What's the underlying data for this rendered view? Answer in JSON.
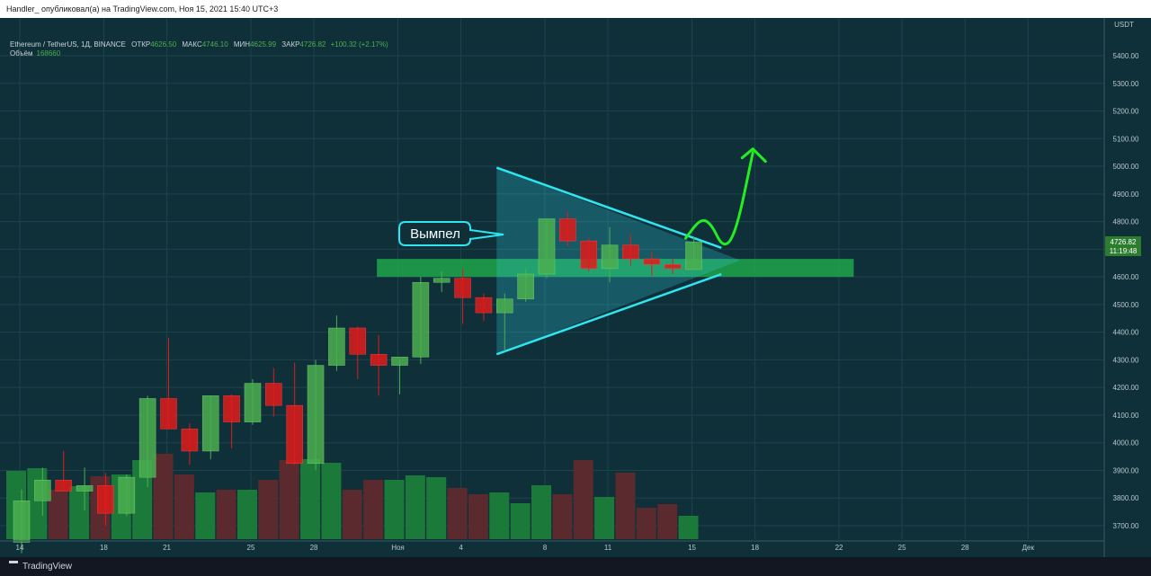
{
  "header": {
    "publisher_line": "Handler_ опубликовал(а) на TradingView.com, Ноя 15, 2021 15:40 UTC+3"
  },
  "legend": {
    "symbol": "Ethereum / TetherUS, 1Д, BINANCE",
    "open_label": "ОТКР",
    "open_value": "4626.50",
    "high_label": "МАКС",
    "high_value": "4746.10",
    "low_label": "МИН",
    "low_value": "4625.99",
    "close_label": "ЗАКР",
    "close_value": "4726.82",
    "change": "+100.32 (+2.17%)",
    "volume_label": "Объём",
    "volume_value": "168660"
  },
  "price_scale": {
    "currency": "USDT",
    "last_price": "4726.82",
    "countdown": "11:19:48"
  },
  "annotation": {
    "label": "Вымпел"
  },
  "footer": {
    "brand": "TradingView"
  },
  "colors": {
    "up": "#4caf50",
    "down": "#e01b1b",
    "vol_up": "#1b7a3a",
    "vol_down": "#5a2a2e",
    "pennant": "#2ee6f0",
    "zone": "#1fa64a",
    "arrow": "#22ee22"
  },
  "chart_data": {
    "type": "candlestick",
    "symbol": "ETHUSDT",
    "interval": "1D",
    "ylim": [
      3650,
      5500
    ],
    "y_ticks": [
      3700,
      3800,
      3900,
      4000,
      4100,
      4200,
      4300,
      4400,
      4500,
      4600,
      4700,
      4800,
      4900,
      5000,
      5100,
      5200,
      5300,
      5400
    ],
    "x_ticks": [
      {
        "i": 0,
        "label": "14"
      },
      {
        "i": 4,
        "label": "18"
      },
      {
        "i": 7,
        "label": "21"
      },
      {
        "i": 11,
        "label": "25"
      },
      {
        "i": 14,
        "label": "28"
      },
      {
        "i": 18,
        "label": "Ноя"
      },
      {
        "i": 21,
        "label": "4"
      },
      {
        "i": 25,
        "label": "8"
      },
      {
        "i": 28,
        "label": "11"
      },
      {
        "i": 32,
        "label": "15"
      },
      {
        "i": 35,
        "label": "18"
      },
      {
        "i": 39,
        "label": "22"
      },
      {
        "i": 42,
        "label": "25"
      },
      {
        "i": 45,
        "label": "28"
      },
      {
        "i": 48,
        "label": "Дек"
      }
    ],
    "candles": [
      {
        "o": 3640,
        "h": 3830,
        "l": 3600,
        "c": 3790
      },
      {
        "o": 3790,
        "h": 3910,
        "l": 3735,
        "c": 3865
      },
      {
        "o": 3865,
        "h": 3970,
        "l": 3825,
        "c": 3825
      },
      {
        "o": 3825,
        "h": 3910,
        "l": 3755,
        "c": 3845
      },
      {
        "o": 3845,
        "h": 3890,
        "l": 3700,
        "c": 3745
      },
      {
        "o": 3745,
        "h": 3885,
        "l": 3735,
        "c": 3875
      },
      {
        "o": 3875,
        "h": 4170,
        "l": 3840,
        "c": 4160
      },
      {
        "o": 4160,
        "h": 4380,
        "l": 4050,
        "c": 4050
      },
      {
        "o": 4050,
        "h": 4070,
        "l": 3920,
        "c": 3970
      },
      {
        "o": 3970,
        "h": 4170,
        "l": 3940,
        "c": 4170
      },
      {
        "o": 4170,
        "h": 4175,
        "l": 3980,
        "c": 4075
      },
      {
        "o": 4075,
        "h": 4230,
        "l": 4065,
        "c": 4215
      },
      {
        "o": 4215,
        "h": 4270,
        "l": 4095,
        "c": 4135
      },
      {
        "o": 4135,
        "h": 4290,
        "l": 3920,
        "c": 3925
      },
      {
        "o": 3925,
        "h": 4300,
        "l": 3900,
        "c": 4280
      },
      {
        "o": 4280,
        "h": 4460,
        "l": 4260,
        "c": 4415
      },
      {
        "o": 4415,
        "h": 4420,
        "l": 4230,
        "c": 4320
      },
      {
        "o": 4320,
        "h": 4390,
        "l": 4170,
        "c": 4280
      },
      {
        "o": 4280,
        "h": 4300,
        "l": 4175,
        "c": 4310
      },
      {
        "o": 4310,
        "h": 4600,
        "l": 4285,
        "c": 4580
      },
      {
        "o": 4580,
        "h": 4620,
        "l": 4545,
        "c": 4595
      },
      {
        "o": 4595,
        "h": 4630,
        "l": 4430,
        "c": 4525
      },
      {
        "o": 4525,
        "h": 4540,
        "l": 4440,
        "c": 4470
      },
      {
        "o": 4470,
        "h": 4540,
        "l": 4330,
        "c": 4520
      },
      {
        "o": 4520,
        "h": 4630,
        "l": 4510,
        "c": 4610
      },
      {
        "o": 4610,
        "h": 4810,
        "l": 4595,
        "c": 4810
      },
      {
        "o": 4810,
        "h": 4835,
        "l": 4710,
        "c": 4730
      },
      {
        "o": 4730,
        "h": 4740,
        "l": 4620,
        "c": 4630
      },
      {
        "o": 4630,
        "h": 4780,
        "l": 4580,
        "c": 4715
      },
      {
        "o": 4715,
        "h": 4755,
        "l": 4640,
        "c": 4665
      },
      {
        "o": 4665,
        "h": 4690,
        "l": 4605,
        "c": 4645
      },
      {
        "o": 4645,
        "h": 4665,
        "l": 4610,
        "c": 4630
      },
      {
        "o": 4626.5,
        "h": 4746.1,
        "l": 4625.99,
        "c": 4726.82
      }
    ],
    "volume": [
      {
        "v": 0.76,
        "up": true
      },
      {
        "v": 0.79,
        "up": true
      },
      {
        "v": 0.55,
        "up": false
      },
      {
        "v": 0.59,
        "up": true
      },
      {
        "v": 0.7,
        "up": false
      },
      {
        "v": 0.72,
        "up": true
      },
      {
        "v": 0.88,
        "up": true
      },
      {
        "v": 0.95,
        "up": false
      },
      {
        "v": 0.72,
        "up": false
      },
      {
        "v": 0.52,
        "up": true
      },
      {
        "v": 0.55,
        "up": false
      },
      {
        "v": 0.55,
        "up": true
      },
      {
        "v": 0.66,
        "up": false
      },
      {
        "v": 0.88,
        "up": false
      },
      {
        "v": 0.89,
        "up": true
      },
      {
        "v": 0.85,
        "up": true
      },
      {
        "v": 0.55,
        "up": false
      },
      {
        "v": 0.66,
        "up": false
      },
      {
        "v": 0.66,
        "up": true
      },
      {
        "v": 0.71,
        "up": true
      },
      {
        "v": 0.69,
        "up": true
      },
      {
        "v": 0.57,
        "up": false
      },
      {
        "v": 0.5,
        "up": false
      },
      {
        "v": 0.52,
        "up": true
      },
      {
        "v": 0.4,
        "up": true
      },
      {
        "v": 0.6,
        "up": true
      },
      {
        "v": 0.5,
        "up": false
      },
      {
        "v": 0.88,
        "up": false
      },
      {
        "v": 0.47,
        "up": true
      },
      {
        "v": 0.74,
        "up": false
      },
      {
        "v": 0.35,
        "up": false
      },
      {
        "v": 0.39,
        "up": false
      },
      {
        "v": 0.26,
        "up": true
      }
    ],
    "drawings": {
      "support_zone": {
        "y_top": 4665,
        "y_bottom": 4600,
        "i_start": 17.3,
        "i_end": 40.0
      },
      "pennant": {
        "i_apex_start": 23.0,
        "upper_start": 4995,
        "lower_start": 4320,
        "i_end": 33.7,
        "upper_end": 4705,
        "lower_end": 4610,
        "i_tip": 34.6,
        "tip_price": 4660
      },
      "projection_arrow": [
        {
          "i": 32.0,
          "p": 4740
        },
        {
          "i": 32.7,
          "p": 4810
        },
        {
          "i": 33.2,
          "p": 4795
        },
        {
          "i": 33.8,
          "p": 4700
        },
        {
          "i": 34.4,
          "p": 4760
        },
        {
          "i": 35.2,
          "p": 5050
        }
      ]
    }
  }
}
